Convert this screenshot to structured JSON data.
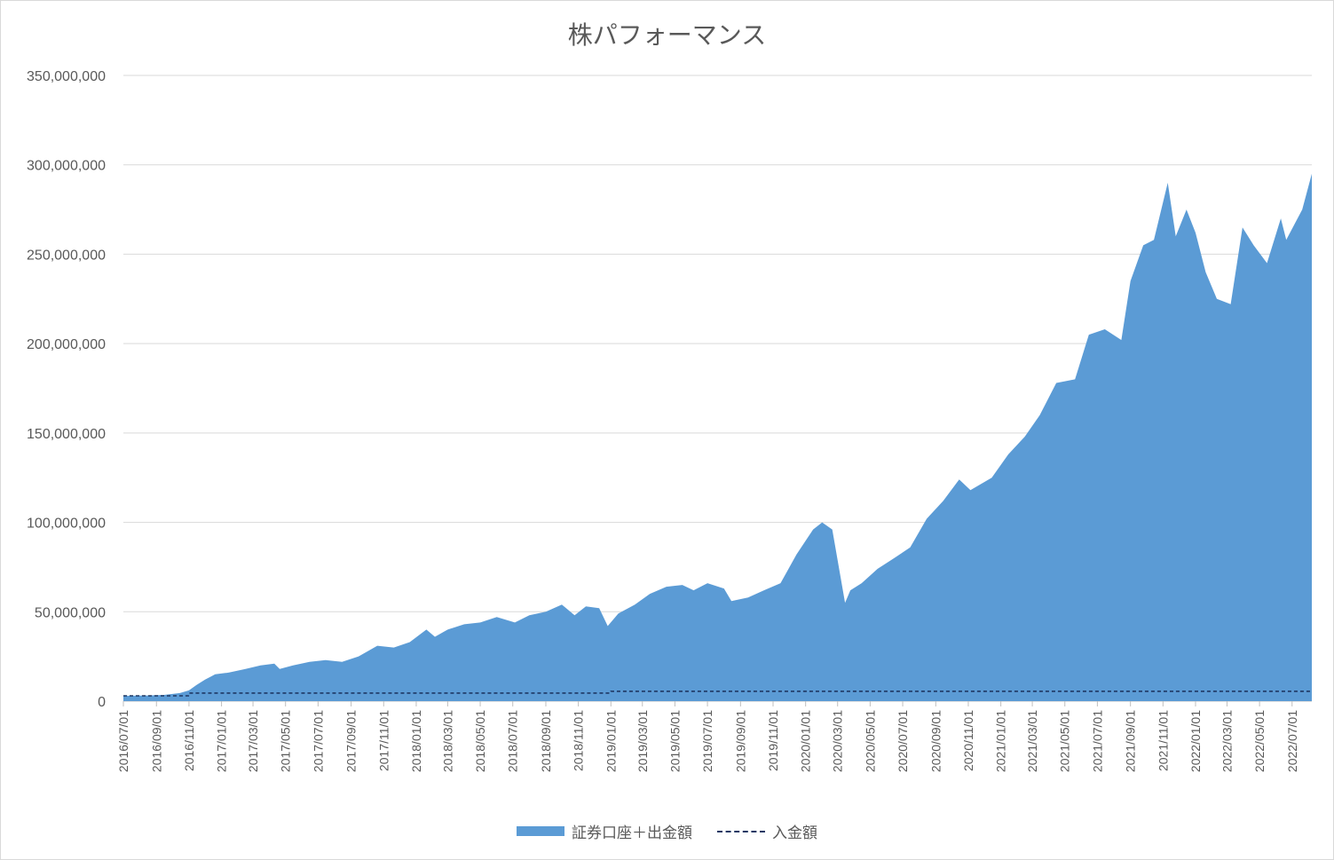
{
  "chart_data": {
    "type": "area",
    "title": "株パフォーマンス",
    "xlabel": "",
    "ylabel": "",
    "ylim": [
      0,
      350000000
    ],
    "x_range": [
      "2016-07-01",
      "2022-08-07"
    ],
    "y_ticks": [
      "0",
      "50,000,000",
      "100,000,000",
      "150,000,000",
      "200,000,000",
      "250,000,000",
      "300,000,000",
      "350,000,000"
    ],
    "y_tick_values": [
      0,
      50000000,
      100000000,
      150000000,
      200000000,
      250000000,
      300000000,
      350000000
    ],
    "x_ticks": [
      "2016/07/01",
      "2016/09/01",
      "2016/11/01",
      "2017/01/01",
      "2017/03/01",
      "2017/05/01",
      "2017/07/01",
      "2017/09/01",
      "2017/11/01",
      "2018/01/01",
      "2018/03/01",
      "2018/05/01",
      "2018/07/01",
      "2018/09/01",
      "2018/11/01",
      "2019/01/01",
      "2019/03/01",
      "2019/05/01",
      "2019/07/01",
      "2019/09/01",
      "2019/11/01",
      "2020/01/01",
      "2020/03/01",
      "2020/05/01",
      "2020/07/01",
      "2020/09/01",
      "2020/11/01",
      "2021/01/01",
      "2021/03/01",
      "2021/05/01",
      "2021/07/01",
      "2021/09/01",
      "2021/11/01",
      "2022/01/01",
      "2022/03/01",
      "2022/05/01",
      "2022/07/01"
    ],
    "grid": true,
    "legend_position": "bottom",
    "series": [
      {
        "name": "証券口座＋出金額",
        "type": "area",
        "color": "#5b9bd5",
        "points": [
          [
            "2016-07-01",
            3000000
          ],
          [
            "2016-08-15",
            3200000
          ],
          [
            "2016-09-15",
            3500000
          ],
          [
            "2016-10-15",
            4500000
          ],
          [
            "2016-11-01",
            6000000
          ],
          [
            "2016-11-15",
            9000000
          ],
          [
            "2016-12-01",
            12000000
          ],
          [
            "2016-12-20",
            15000000
          ],
          [
            "2017-01-15",
            16000000
          ],
          [
            "2017-02-15",
            18000000
          ],
          [
            "2017-03-15",
            20000000
          ],
          [
            "2017-04-10",
            21000000
          ],
          [
            "2017-04-20",
            18000000
          ],
          [
            "2017-05-15",
            20000000
          ],
          [
            "2017-06-15",
            22000000
          ],
          [
            "2017-07-15",
            23000000
          ],
          [
            "2017-08-15",
            22000000
          ],
          [
            "2017-09-15",
            25000000
          ],
          [
            "2017-10-20",
            31000000
          ],
          [
            "2017-11-20",
            30000000
          ],
          [
            "2017-12-20",
            33000000
          ],
          [
            "2018-01-20",
            40000000
          ],
          [
            "2018-02-05",
            36000000
          ],
          [
            "2018-03-01",
            40000000
          ],
          [
            "2018-04-01",
            43000000
          ],
          [
            "2018-05-01",
            44000000
          ],
          [
            "2018-06-01",
            47000000
          ],
          [
            "2018-07-05",
            44000000
          ],
          [
            "2018-08-01",
            48000000
          ],
          [
            "2018-09-01",
            50000000
          ],
          [
            "2018-10-01",
            54000000
          ],
          [
            "2018-10-25",
            48000000
          ],
          [
            "2018-11-15",
            53000000
          ],
          [
            "2018-12-10",
            52000000
          ],
          [
            "2018-12-26",
            42000000
          ],
          [
            "2019-01-15",
            49000000
          ],
          [
            "2019-02-15",
            54000000
          ],
          [
            "2019-03-15",
            60000000
          ],
          [
            "2019-04-15",
            64000000
          ],
          [
            "2019-05-15",
            65000000
          ],
          [
            "2019-06-05",
            62000000
          ],
          [
            "2019-07-01",
            66000000
          ],
          [
            "2019-08-01",
            63000000
          ],
          [
            "2019-08-15",
            56000000
          ],
          [
            "2019-09-15",
            58000000
          ],
          [
            "2019-10-15",
            62000000
          ],
          [
            "2019-11-15",
            66000000
          ],
          [
            "2019-12-15",
            82000000
          ],
          [
            "2020-01-15",
            96000000
          ],
          [
            "2020-02-01",
            100000000
          ],
          [
            "2020-02-20",
            96000000
          ],
          [
            "2020-03-15",
            55000000
          ],
          [
            "2020-03-25",
            62000000
          ],
          [
            "2020-04-15",
            66000000
          ],
          [
            "2020-05-15",
            74000000
          ],
          [
            "2020-06-15",
            80000000
          ],
          [
            "2020-07-15",
            86000000
          ],
          [
            "2020-08-15",
            102000000
          ],
          [
            "2020-09-15",
            112000000
          ],
          [
            "2020-10-15",
            124000000
          ],
          [
            "2020-11-05",
            118000000
          ],
          [
            "2020-12-15",
            125000000
          ],
          [
            "2021-01-15",
            138000000
          ],
          [
            "2021-02-15",
            148000000
          ],
          [
            "2021-03-15",
            160000000
          ],
          [
            "2021-04-15",
            178000000
          ],
          [
            "2021-05-20",
            180000000
          ],
          [
            "2021-06-15",
            205000000
          ],
          [
            "2021-07-15",
            208000000
          ],
          [
            "2021-08-15",
            202000000
          ],
          [
            "2021-09-01",
            235000000
          ],
          [
            "2021-09-25",
            255000000
          ],
          [
            "2021-10-15",
            258000000
          ],
          [
            "2021-11-10",
            290000000
          ],
          [
            "2021-11-25",
            260000000
          ],
          [
            "2021-12-15",
            275000000
          ],
          [
            "2022-01-01",
            262000000
          ],
          [
            "2022-01-20",
            240000000
          ],
          [
            "2022-02-10",
            225000000
          ],
          [
            "2022-03-08",
            222000000
          ],
          [
            "2022-03-30",
            265000000
          ],
          [
            "2022-04-20",
            255000000
          ],
          [
            "2022-05-15",
            245000000
          ],
          [
            "2022-06-10",
            270000000
          ],
          [
            "2022-06-20",
            258000000
          ],
          [
            "2022-07-20",
            275000000
          ],
          [
            "2022-08-07",
            295000000
          ]
        ]
      },
      {
        "name": "入金額",
        "type": "line",
        "style": "dashed",
        "color": "#1f3864",
        "points": [
          [
            "2016-07-01",
            3000000
          ],
          [
            "2016-10-31",
            3000000
          ],
          [
            "2016-11-01",
            4500000
          ],
          [
            "2018-12-31",
            4500000
          ],
          [
            "2019-01-01",
            5500000
          ],
          [
            "2022-08-07",
            5500000
          ]
        ]
      }
    ]
  }
}
